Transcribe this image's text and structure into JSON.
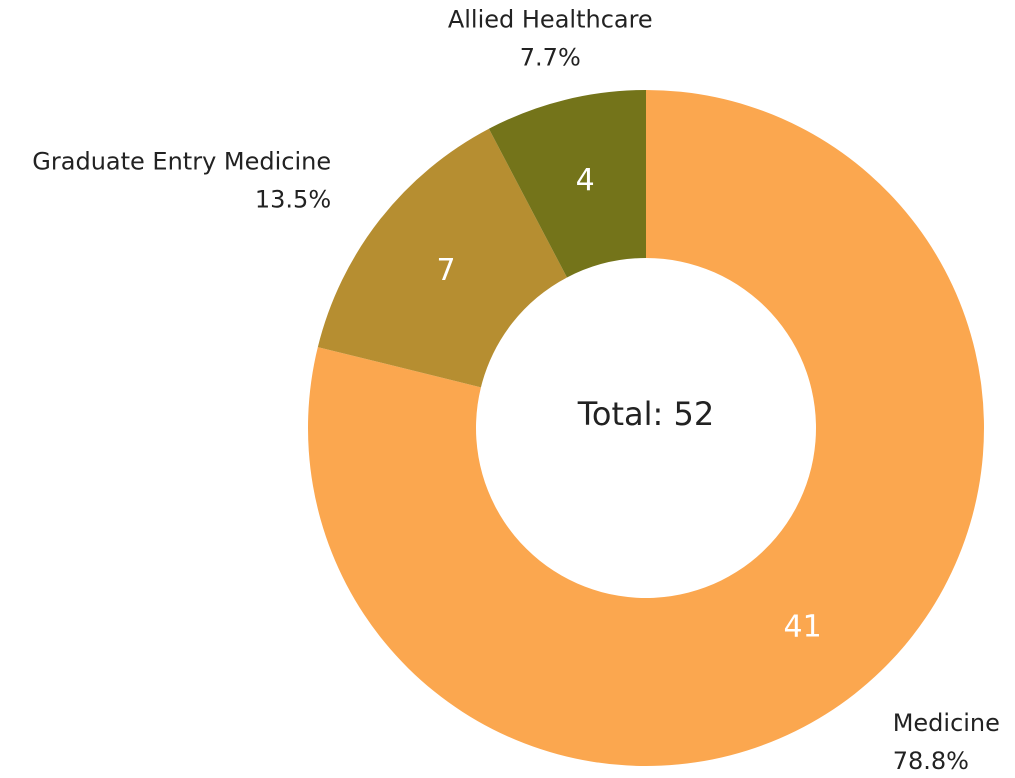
{
  "chart_data": {
    "type": "donut",
    "categories": [
      "Medicine",
      "Graduate Entry Medicine",
      "Allied Healthcare"
    ],
    "values": [
      41,
      7,
      4
    ],
    "percent_labels": [
      "78.8%",
      "13.5%",
      "7.7%"
    ],
    "colors": [
      "#fba74f",
      "#b68e31",
      "#74741a"
    ],
    "center_label": "Total: 52"
  }
}
